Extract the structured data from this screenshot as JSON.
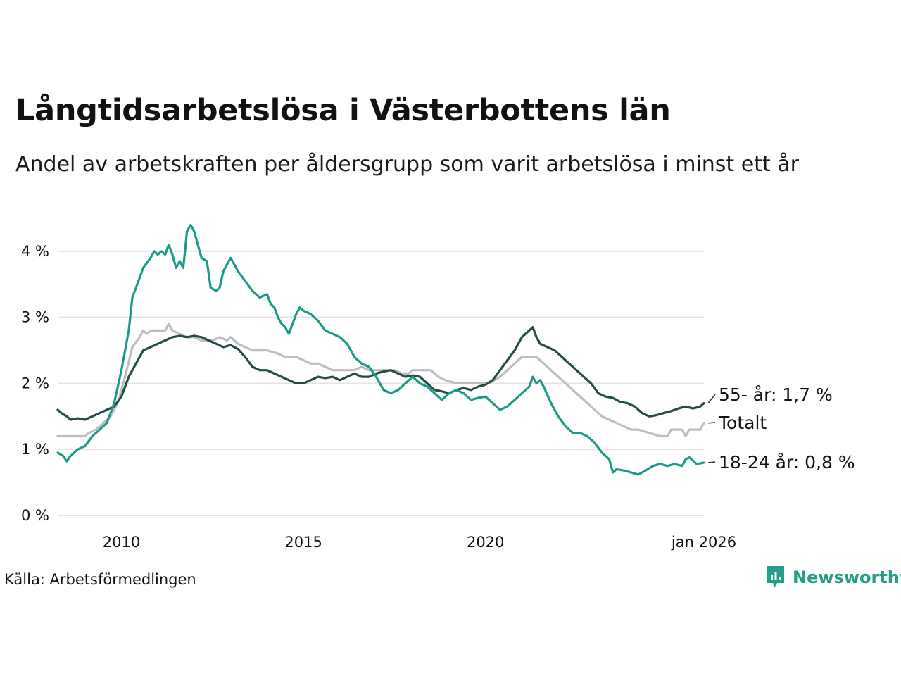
{
  "title": "Långtidsarbetslösa i Västerbottens län",
  "subtitle": "Andel av arbetskraften per åldersgrupp som varit arbetslösa i minst ett år",
  "source": "Källa: Arbetsförmedlingen",
  "brand": {
    "name": "Newsworthy",
    "icon": "newsworthy-logo-icon"
  },
  "colors": {
    "grid": "#e3e3e3",
    "youth": "#1b9a8a",
    "senior": "#234d45",
    "total": "#bdbdc8",
    "brand": "#2a9d8a"
  },
  "chart_data": {
    "type": "line",
    "title": "Långtidsarbetslösa i Västerbottens län",
    "xlabel": "",
    "ylabel": "",
    "xlim": [
      2008.25,
      2026.0
    ],
    "ylim": [
      0,
      4.5
    ],
    "yticks": [
      {
        "value": 0,
        "label": "0 %"
      },
      {
        "value": 1,
        "label": "1 %"
      },
      {
        "value": 2,
        "label": "2 %"
      },
      {
        "value": 3,
        "label": "3 %"
      },
      {
        "value": 4,
        "label": "4 %"
      }
    ],
    "xticks": [
      {
        "value": 2010,
        "label": "2010"
      },
      {
        "value": 2015,
        "label": "2015"
      },
      {
        "value": 2020,
        "label": "2020"
      },
      {
        "value": 2026,
        "label": "jan 2026"
      }
    ],
    "series": [
      {
        "name": "Totalt",
        "end_label": "Totalt",
        "color": "#bdbdc8",
        "points": [
          [
            2008.25,
            1.2
          ],
          [
            2009.0,
            1.2
          ],
          [
            2009.1,
            1.25
          ],
          [
            2009.3,
            1.3
          ],
          [
            2009.5,
            1.4
          ],
          [
            2009.7,
            1.5
          ],
          [
            2009.9,
            1.7
          ],
          [
            2010.1,
            2.1
          ],
          [
            2010.3,
            2.55
          ],
          [
            2010.5,
            2.7
          ],
          [
            2010.6,
            2.8
          ],
          [
            2010.7,
            2.75
          ],
          [
            2010.8,
            2.8
          ],
          [
            2011.2,
            2.8
          ],
          [
            2011.3,
            2.9
          ],
          [
            2011.4,
            2.8
          ],
          [
            2011.6,
            2.75
          ],
          [
            2011.8,
            2.7
          ],
          [
            2012.0,
            2.7
          ],
          [
            2012.2,
            2.65
          ],
          [
            2012.5,
            2.65
          ],
          [
            2012.7,
            2.7
          ],
          [
            2012.9,
            2.65
          ],
          [
            2013.0,
            2.7
          ],
          [
            2013.2,
            2.6
          ],
          [
            2013.4,
            2.55
          ],
          [
            2013.6,
            2.5
          ],
          [
            2014.0,
            2.5
          ],
          [
            2014.3,
            2.45
          ],
          [
            2014.5,
            2.4
          ],
          [
            2014.8,
            2.4
          ],
          [
            2015.0,
            2.35
          ],
          [
            2015.2,
            2.3
          ],
          [
            2015.4,
            2.3
          ],
          [
            2015.6,
            2.25
          ],
          [
            2015.8,
            2.2
          ],
          [
            2016.4,
            2.2
          ],
          [
            2016.6,
            2.25
          ],
          [
            2016.8,
            2.2
          ],
          [
            2017.5,
            2.2
          ],
          [
            2017.7,
            2.15
          ],
          [
            2017.9,
            2.15
          ],
          [
            2018.0,
            2.2
          ],
          [
            2018.5,
            2.2
          ],
          [
            2018.7,
            2.1
          ],
          [
            2018.9,
            2.05
          ],
          [
            2019.2,
            2.0
          ],
          [
            2019.7,
            2.0
          ],
          [
            2020.1,
            2.0
          ],
          [
            2020.4,
            2.1
          ],
          [
            2020.6,
            2.2
          ],
          [
            2020.8,
            2.3
          ],
          [
            2020.9,
            2.35
          ],
          [
            2021.0,
            2.4
          ],
          [
            2021.4,
            2.4
          ],
          [
            2021.6,
            2.3
          ],
          [
            2021.8,
            2.2
          ],
          [
            2022.0,
            2.1
          ],
          [
            2022.2,
            2.0
          ],
          [
            2022.4,
            1.9
          ],
          [
            2022.6,
            1.8
          ],
          [
            2022.8,
            1.7
          ],
          [
            2023.0,
            1.6
          ],
          [
            2023.2,
            1.5
          ],
          [
            2023.4,
            1.45
          ],
          [
            2023.6,
            1.4
          ],
          [
            2023.8,
            1.35
          ],
          [
            2024.0,
            1.3
          ],
          [
            2024.2,
            1.3
          ],
          [
            2024.5,
            1.25
          ],
          [
            2024.8,
            1.2
          ],
          [
            2025.0,
            1.2
          ],
          [
            2025.1,
            1.3
          ],
          [
            2025.4,
            1.3
          ],
          [
            2025.5,
            1.2
          ],
          [
            2025.6,
            1.3
          ],
          [
            2025.9,
            1.3
          ],
          [
            2026.0,
            1.4
          ]
        ]
      },
      {
        "name": "55- år",
        "end_label": "55- år: 1,7 %",
        "color": "#234d45",
        "points": [
          [
            2008.25,
            1.6
          ],
          [
            2008.35,
            1.55
          ],
          [
            2008.5,
            1.5
          ],
          [
            2008.6,
            1.45
          ],
          [
            2008.8,
            1.47
          ],
          [
            2009.0,
            1.45
          ],
          [
            2009.2,
            1.5
          ],
          [
            2009.4,
            1.55
          ],
          [
            2009.6,
            1.6
          ],
          [
            2009.8,
            1.65
          ],
          [
            2010.0,
            1.8
          ],
          [
            2010.2,
            2.1
          ],
          [
            2010.4,
            2.3
          ],
          [
            2010.6,
            2.5
          ],
          [
            2010.8,
            2.55
          ],
          [
            2011.0,
            2.6
          ],
          [
            2011.2,
            2.65
          ],
          [
            2011.4,
            2.7
          ],
          [
            2011.6,
            2.72
          ],
          [
            2011.8,
            2.7
          ],
          [
            2012.0,
            2.72
          ],
          [
            2012.2,
            2.7
          ],
          [
            2012.4,
            2.65
          ],
          [
            2012.6,
            2.6
          ],
          [
            2012.8,
            2.55
          ],
          [
            2013.0,
            2.58
          ],
          [
            2013.2,
            2.52
          ],
          [
            2013.4,
            2.4
          ],
          [
            2013.6,
            2.25
          ],
          [
            2013.8,
            2.2
          ],
          [
            2014.0,
            2.2
          ],
          [
            2014.2,
            2.15
          ],
          [
            2014.4,
            2.1
          ],
          [
            2014.6,
            2.05
          ],
          [
            2014.8,
            2.0
          ],
          [
            2015.0,
            2.0
          ],
          [
            2015.2,
            2.05
          ],
          [
            2015.4,
            2.1
          ],
          [
            2015.6,
            2.08
          ],
          [
            2015.8,
            2.1
          ],
          [
            2016.0,
            2.05
          ],
          [
            2016.2,
            2.1
          ],
          [
            2016.4,
            2.15
          ],
          [
            2016.6,
            2.1
          ],
          [
            2016.8,
            2.1
          ],
          [
            2017.0,
            2.15
          ],
          [
            2017.2,
            2.18
          ],
          [
            2017.4,
            2.2
          ],
          [
            2017.6,
            2.15
          ],
          [
            2017.8,
            2.1
          ],
          [
            2018.0,
            2.12
          ],
          [
            2018.2,
            2.1
          ],
          [
            2018.4,
            2.0
          ],
          [
            2018.6,
            1.9
          ],
          [
            2018.8,
            1.88
          ],
          [
            2019.0,
            1.85
          ],
          [
            2019.2,
            1.9
          ],
          [
            2019.4,
            1.93
          ],
          [
            2019.6,
            1.9
          ],
          [
            2019.8,
            1.95
          ],
          [
            2020.0,
            1.98
          ],
          [
            2020.2,
            2.05
          ],
          [
            2020.4,
            2.2
          ],
          [
            2020.6,
            2.35
          ],
          [
            2020.8,
            2.5
          ],
          [
            2021.0,
            2.7
          ],
          [
            2021.2,
            2.8
          ],
          [
            2021.3,
            2.85
          ],
          [
            2021.4,
            2.7
          ],
          [
            2021.5,
            2.6
          ],
          [
            2021.7,
            2.55
          ],
          [
            2021.9,
            2.5
          ],
          [
            2022.1,
            2.4
          ],
          [
            2022.3,
            2.3
          ],
          [
            2022.5,
            2.2
          ],
          [
            2022.7,
            2.1
          ],
          [
            2022.9,
            2.0
          ],
          [
            2023.1,
            1.85
          ],
          [
            2023.3,
            1.8
          ],
          [
            2023.5,
            1.78
          ],
          [
            2023.7,
            1.72
          ],
          [
            2023.9,
            1.7
          ],
          [
            2024.1,
            1.65
          ],
          [
            2024.3,
            1.55
          ],
          [
            2024.5,
            1.5
          ],
          [
            2024.7,
            1.52
          ],
          [
            2024.9,
            1.55
          ],
          [
            2025.1,
            1.58
          ],
          [
            2025.3,
            1.62
          ],
          [
            2025.5,
            1.65
          ],
          [
            2025.7,
            1.62
          ],
          [
            2025.9,
            1.65
          ],
          [
            2026.0,
            1.7
          ]
        ]
      },
      {
        "name": "18-24 år",
        "end_label": "18-24 år: 0,8 %",
        "color": "#1b9a8a",
        "points": [
          [
            2008.25,
            0.95
          ],
          [
            2008.4,
            0.9
          ],
          [
            2008.5,
            0.82
          ],
          [
            2008.6,
            0.9
          ],
          [
            2008.8,
            1.0
          ],
          [
            2009.0,
            1.05
          ],
          [
            2009.2,
            1.2
          ],
          [
            2009.3,
            1.25
          ],
          [
            2009.4,
            1.3
          ],
          [
            2009.6,
            1.4
          ],
          [
            2009.8,
            1.7
          ],
          [
            2010.0,
            2.2
          ],
          [
            2010.2,
            2.8
          ],
          [
            2010.3,
            3.3
          ],
          [
            2010.5,
            3.6
          ],
          [
            2010.6,
            3.75
          ],
          [
            2010.8,
            3.9
          ],
          [
            2010.9,
            4.0
          ],
          [
            2011.0,
            3.95
          ],
          [
            2011.1,
            4.0
          ],
          [
            2011.2,
            3.95
          ],
          [
            2011.3,
            4.1
          ],
          [
            2011.4,
            3.95
          ],
          [
            2011.5,
            3.75
          ],
          [
            2011.6,
            3.85
          ],
          [
            2011.7,
            3.75
          ],
          [
            2011.8,
            4.3
          ],
          [
            2011.9,
            4.4
          ],
          [
            2012.0,
            4.3
          ],
          [
            2012.2,
            3.9
          ],
          [
            2012.35,
            3.85
          ],
          [
            2012.45,
            3.45
          ],
          [
            2012.6,
            3.4
          ],
          [
            2012.7,
            3.45
          ],
          [
            2012.8,
            3.7
          ],
          [
            2012.9,
            3.8
          ],
          [
            2013.0,
            3.9
          ],
          [
            2013.2,
            3.7
          ],
          [
            2013.4,
            3.55
          ],
          [
            2013.6,
            3.4
          ],
          [
            2013.8,
            3.3
          ],
          [
            2014.0,
            3.35
          ],
          [
            2014.1,
            3.2
          ],
          [
            2014.2,
            3.15
          ],
          [
            2014.3,
            3.0
          ],
          [
            2014.4,
            2.9
          ],
          [
            2014.5,
            2.85
          ],
          [
            2014.6,
            2.75
          ],
          [
            2014.7,
            2.9
          ],
          [
            2014.8,
            3.05
          ],
          [
            2014.9,
            3.15
          ],
          [
            2015.0,
            3.1
          ],
          [
            2015.2,
            3.05
          ],
          [
            2015.4,
            2.95
          ],
          [
            2015.6,
            2.8
          ],
          [
            2015.8,
            2.75
          ],
          [
            2016.0,
            2.7
          ],
          [
            2016.2,
            2.6
          ],
          [
            2016.4,
            2.4
          ],
          [
            2016.6,
            2.3
          ],
          [
            2016.8,
            2.25
          ],
          [
            2017.0,
            2.1
          ],
          [
            2017.2,
            1.9
          ],
          [
            2017.4,
            1.85
          ],
          [
            2017.6,
            1.9
          ],
          [
            2017.8,
            2.0
          ],
          [
            2018.0,
            2.1
          ],
          [
            2018.2,
            2.0
          ],
          [
            2018.4,
            1.95
          ],
          [
            2018.6,
            1.85
          ],
          [
            2018.8,
            1.75
          ],
          [
            2019.0,
            1.85
          ],
          [
            2019.2,
            1.9
          ],
          [
            2019.4,
            1.85
          ],
          [
            2019.6,
            1.75
          ],
          [
            2019.8,
            1.78
          ],
          [
            2020.0,
            1.8
          ],
          [
            2020.2,
            1.7
          ],
          [
            2020.4,
            1.6
          ],
          [
            2020.6,
            1.65
          ],
          [
            2020.8,
            1.75
          ],
          [
            2021.0,
            1.85
          ],
          [
            2021.2,
            1.95
          ],
          [
            2021.3,
            2.1
          ],
          [
            2021.4,
            2.0
          ],
          [
            2021.5,
            2.05
          ],
          [
            2021.6,
            1.95
          ],
          [
            2021.8,
            1.7
          ],
          [
            2022.0,
            1.5
          ],
          [
            2022.2,
            1.35
          ],
          [
            2022.4,
            1.25
          ],
          [
            2022.6,
            1.25
          ],
          [
            2022.8,
            1.2
          ],
          [
            2023.0,
            1.1
          ],
          [
            2023.2,
            0.95
          ],
          [
            2023.4,
            0.85
          ],
          [
            2023.5,
            0.65
          ],
          [
            2023.6,
            0.7
          ],
          [
            2023.8,
            0.68
          ],
          [
            2024.0,
            0.65
          ],
          [
            2024.2,
            0.62
          ],
          [
            2024.4,
            0.68
          ],
          [
            2024.6,
            0.75
          ],
          [
            2024.8,
            0.78
          ],
          [
            2025.0,
            0.75
          ],
          [
            2025.2,
            0.78
          ],
          [
            2025.4,
            0.75
          ],
          [
            2025.5,
            0.85
          ],
          [
            2025.6,
            0.88
          ],
          [
            2025.8,
            0.78
          ],
          [
            2026.0,
            0.8
          ]
        ]
      }
    ]
  }
}
